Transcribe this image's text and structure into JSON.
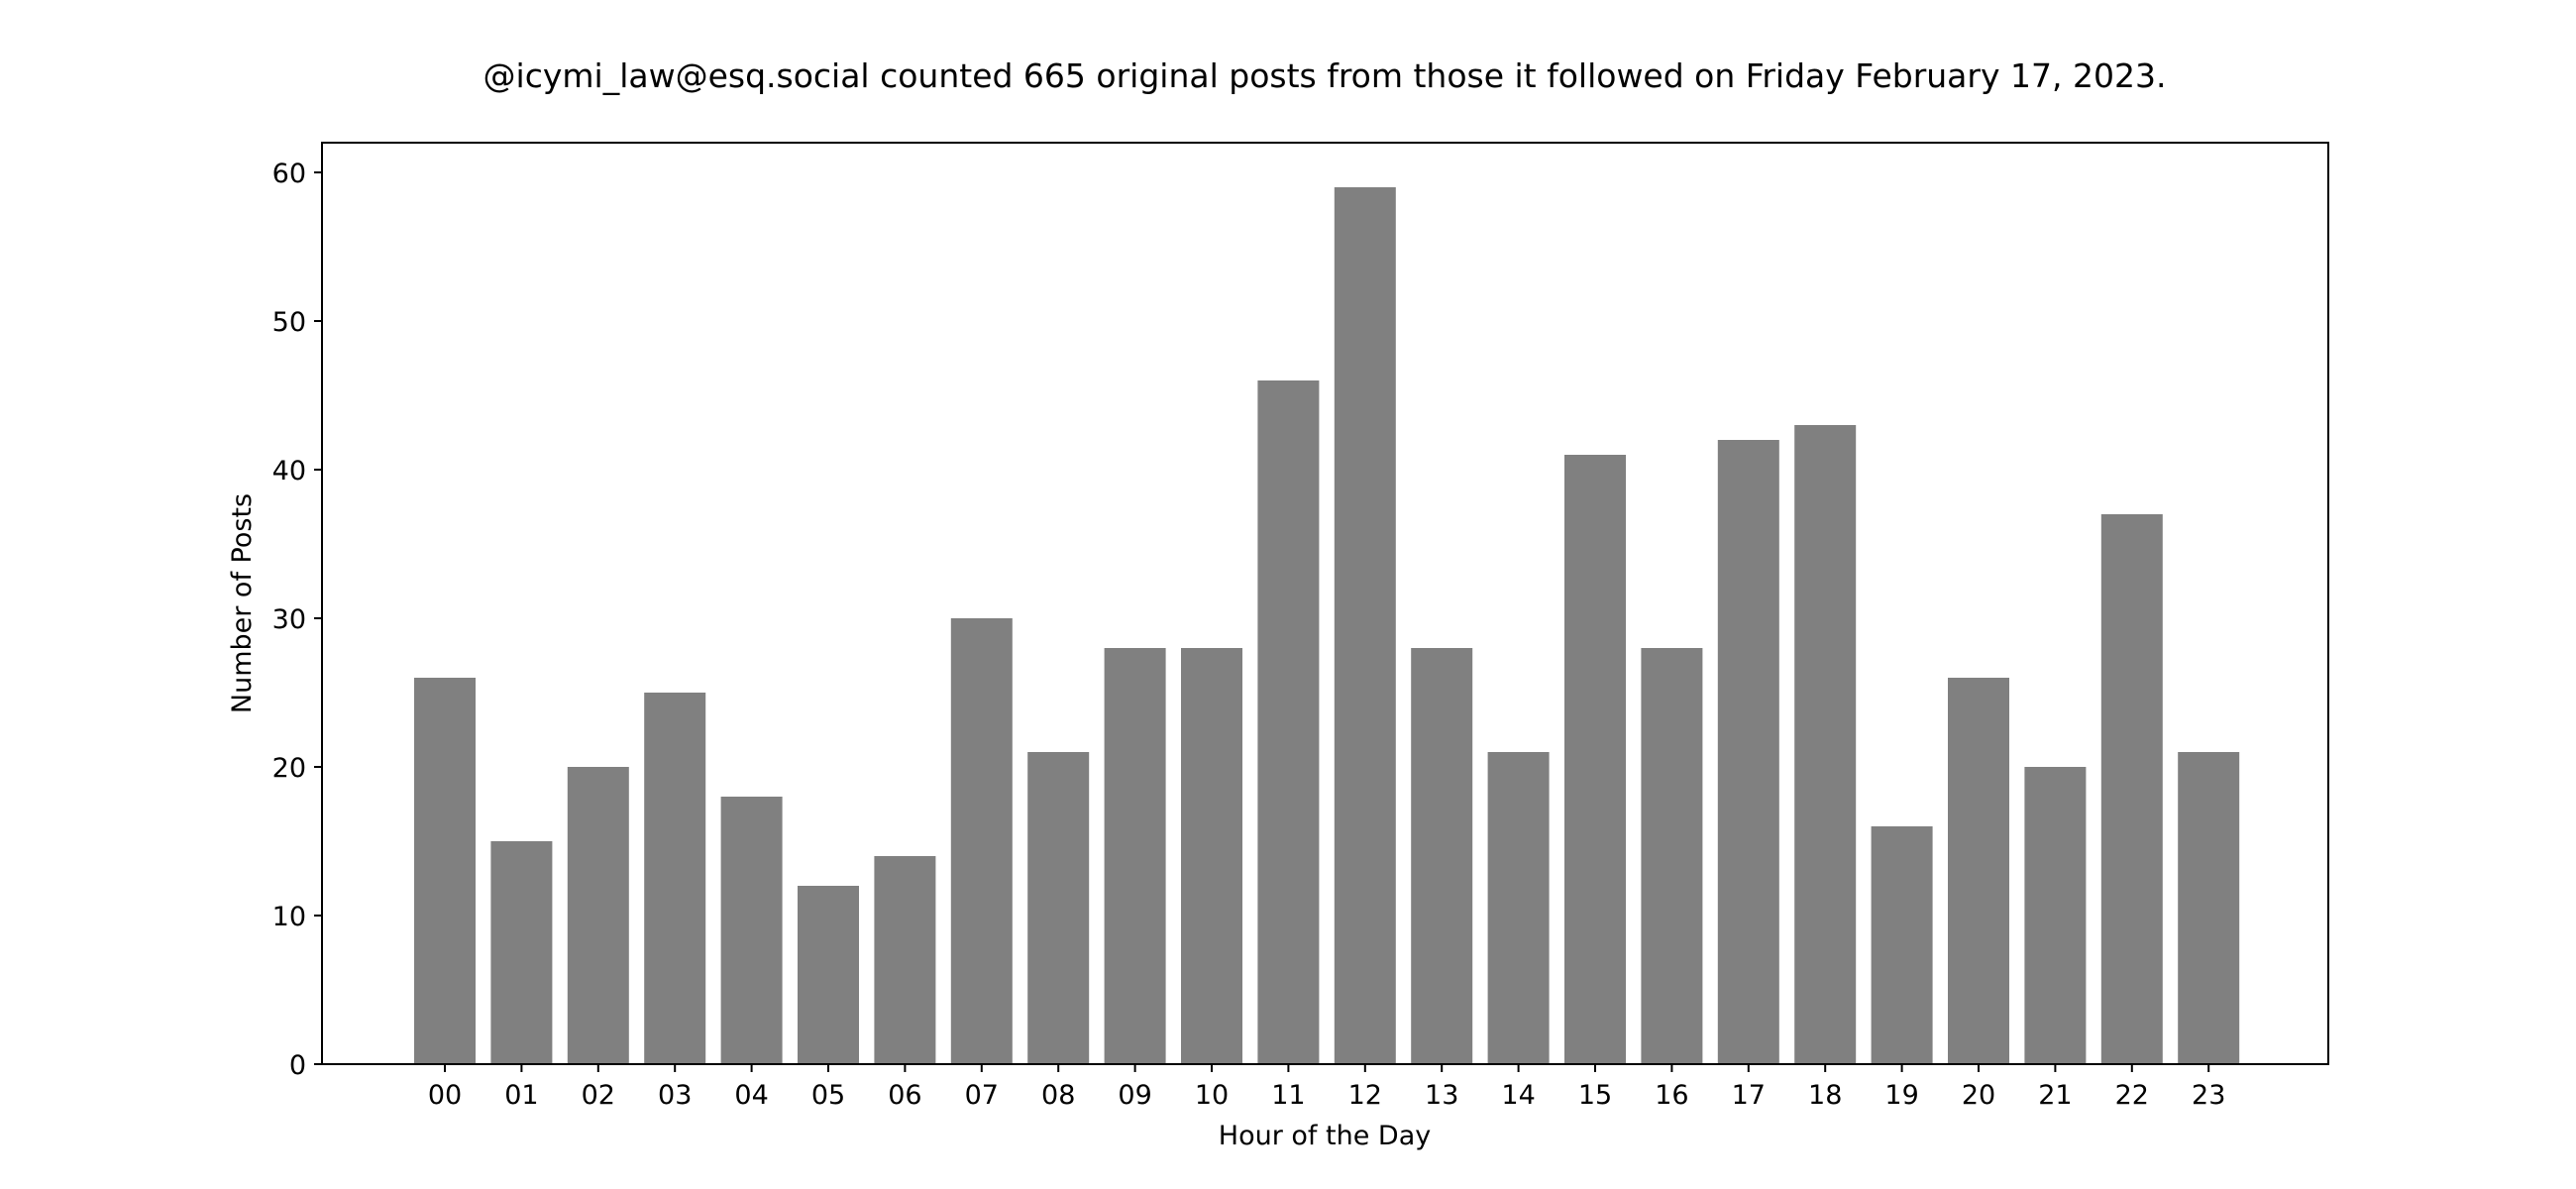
{
  "chart_data": {
    "type": "bar",
    "title": "@icymi_law@esq.social counted 665 original posts from those it followed on Friday February 17, 2023.",
    "xlabel": "Hour of the Day",
    "ylabel": "Number of Posts",
    "categories": [
      "00",
      "01",
      "02",
      "03",
      "04",
      "05",
      "06",
      "07",
      "08",
      "09",
      "10",
      "11",
      "12",
      "13",
      "14",
      "15",
      "16",
      "17",
      "18",
      "19",
      "20",
      "21",
      "22",
      "23"
    ],
    "values": [
      26,
      15,
      20,
      25,
      18,
      12,
      14,
      30,
      21,
      28,
      28,
      46,
      59,
      28,
      21,
      41,
      28,
      42,
      43,
      16,
      26,
      20,
      37,
      21
    ],
    "ylim": [
      0,
      62
    ],
    "yticks": [
      0,
      10,
      20,
      30,
      40,
      50,
      60
    ],
    "bar_color": "#808080",
    "grid": false,
    "legend": false
  }
}
